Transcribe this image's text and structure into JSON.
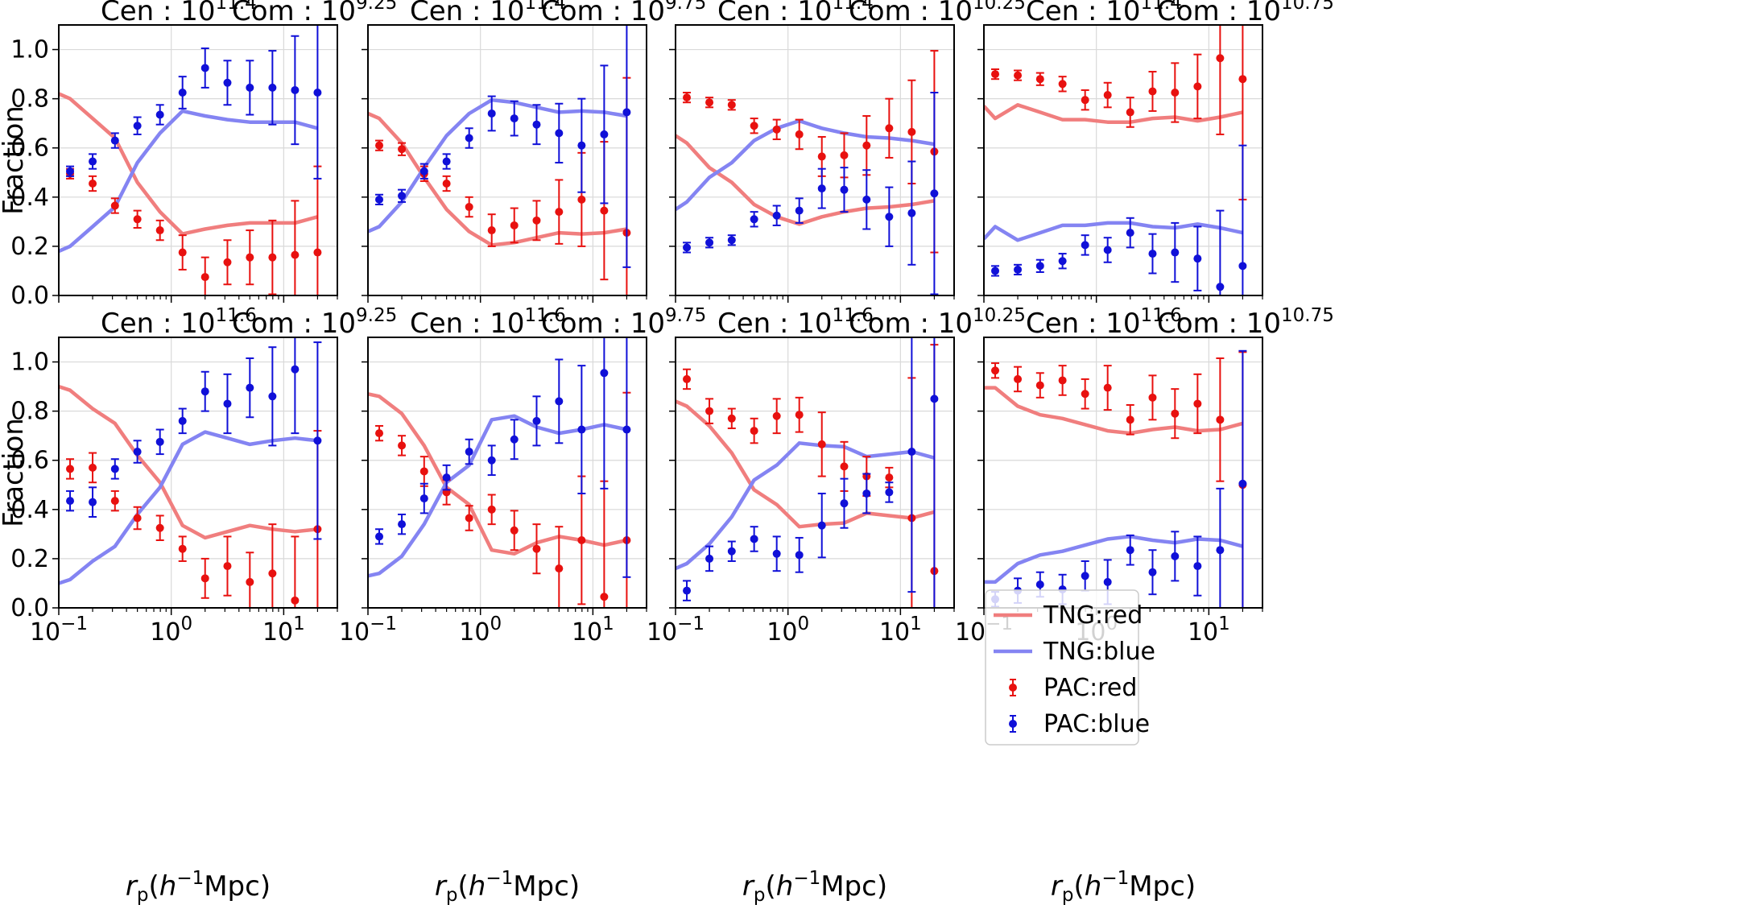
{
  "figure": {
    "ylabel": "Fraction",
    "xlabel_parts": {
      "r": "r",
      "sub": "p",
      "open": "(",
      "h": "h",
      "sup": "−1",
      "rest": "Mpc)"
    },
    "yticks": [
      "0.0",
      "0.2",
      "0.4",
      "0.6",
      "0.8",
      "1.0"
    ],
    "xticks": [
      {
        "base": "10",
        "exp": "−1"
      },
      {
        "base": "10",
        "exp": "0"
      },
      {
        "base": "10",
        "exp": "1"
      }
    ],
    "title_prefix_cen": "Cen : ",
    "title_prefix_com": "Com : ",
    "title_base": "10",
    "colors": {
      "tng_red": "#f07e7e",
      "tng_blue": "#8484f2",
      "pac_red": "#e8110f",
      "pac_blue": "#1010d8",
      "grid": "#d9d9d9"
    }
  },
  "legend": {
    "tng_red": "TNG:red",
    "tng_blue": "TNG:blue",
    "pac_red": "PAC:red",
    "pac_blue": "PAC:blue"
  },
  "chart_data": {
    "type": "line",
    "xscale": "log",
    "xlim": [
      0.1,
      30
    ],
    "ylim": [
      0,
      1.1
    ],
    "legend_location": "center-right of bottom-right panel",
    "x_pac": [
      0.126,
      0.2,
      0.316,
      0.5,
      0.794,
      1.26,
      2.0,
      3.16,
      5.0,
      7.94,
      12.6,
      20.0
    ],
    "x_tng": [
      0.1,
      0.126,
      0.2,
      0.316,
      0.5,
      0.794,
      1.26,
      2.0,
      3.16,
      5.0,
      7.94,
      12.6,
      20.0
    ],
    "panels": [
      {
        "cen_exp": "11.4",
        "com_exp": "9.25",
        "tng_red": [
          0.82,
          0.8,
          0.72,
          0.64,
          0.46,
          0.34,
          0.25,
          0.27,
          0.285,
          0.295,
          0.295,
          0.295,
          0.32
        ],
        "tng_blue": [
          0.18,
          0.2,
          0.28,
          0.36,
          0.54,
          0.66,
          0.75,
          0.73,
          0.715,
          0.705,
          0.705,
          0.705,
          0.68
        ],
        "pac_red": [
          0.495,
          0.455,
          0.365,
          0.31,
          0.265,
          0.175,
          0.075,
          0.135,
          0.155,
          0.155,
          0.165,
          0.175
        ],
        "pac_red_err": [
          0.02,
          0.03,
          0.03,
          0.035,
          0.04,
          0.07,
          0.08,
          0.09,
          0.11,
          0.15,
          0.22,
          0.35
        ],
        "pac_blue": [
          0.505,
          0.545,
          0.63,
          0.69,
          0.735,
          0.825,
          0.925,
          0.865,
          0.845,
          0.845,
          0.835,
          0.825
        ],
        "pac_blue_err": [
          0.02,
          0.03,
          0.03,
          0.035,
          0.04,
          0.065,
          0.08,
          0.09,
          0.11,
          0.15,
          0.22,
          0.35
        ]
      },
      {
        "cen_exp": "11.4",
        "com_exp": "9.75",
        "tng_red": [
          0.74,
          0.72,
          0.62,
          0.48,
          0.35,
          0.26,
          0.205,
          0.215,
          0.235,
          0.255,
          0.25,
          0.255,
          0.27
        ],
        "tng_blue": [
          0.26,
          0.28,
          0.38,
          0.52,
          0.65,
          0.74,
          0.795,
          0.785,
          0.765,
          0.745,
          0.75,
          0.745,
          0.73
        ],
        "pac_red": [
          0.61,
          0.595,
          0.495,
          0.455,
          0.36,
          0.265,
          0.285,
          0.305,
          0.34,
          0.39,
          0.345,
          0.255
        ],
        "pac_red_err": [
          0.02,
          0.025,
          0.03,
          0.03,
          0.04,
          0.065,
          0.07,
          0.08,
          0.13,
          0.19,
          0.28,
          0.63
        ],
        "pac_blue": [
          0.39,
          0.405,
          0.505,
          0.545,
          0.64,
          0.74,
          0.72,
          0.695,
          0.66,
          0.61,
          0.655,
          0.745
        ],
        "pac_blue_err": [
          0.02,
          0.025,
          0.03,
          0.03,
          0.04,
          0.07,
          0.07,
          0.08,
          0.12,
          0.19,
          0.28,
          0.63
        ]
      },
      {
        "cen_exp": "11.4",
        "com_exp": "10.25",
        "tng_red": [
          0.65,
          0.62,
          0.52,
          0.46,
          0.37,
          0.32,
          0.29,
          0.32,
          0.34,
          0.355,
          0.36,
          0.37,
          0.385
        ],
        "tng_blue": [
          0.35,
          0.38,
          0.48,
          0.54,
          0.63,
          0.68,
          0.71,
          0.68,
          0.66,
          0.645,
          0.64,
          0.63,
          0.615
        ],
        "pac_red": [
          0.805,
          0.785,
          0.775,
          0.69,
          0.675,
          0.655,
          0.565,
          0.57,
          0.61,
          0.68,
          0.665,
          0.585
        ],
        "pac_red_err": [
          0.02,
          0.02,
          0.02,
          0.03,
          0.04,
          0.06,
          0.08,
          0.09,
          0.12,
          0.12,
          0.21,
          0.41
        ],
        "pac_blue": [
          0.195,
          0.215,
          0.225,
          0.31,
          0.325,
          0.345,
          0.435,
          0.43,
          0.39,
          0.32,
          0.335,
          0.415
        ],
        "pac_blue_err": [
          0.02,
          0.02,
          0.02,
          0.03,
          0.04,
          0.05,
          0.08,
          0.09,
          0.12,
          0.12,
          0.21,
          0.41
        ]
      },
      {
        "cen_exp": "11.4",
        "com_exp": "10.75",
        "tng_red": [
          0.77,
          0.72,
          0.775,
          0.745,
          0.715,
          0.715,
          0.705,
          0.705,
          0.72,
          0.725,
          0.71,
          0.725,
          0.745
        ],
        "tng_blue": [
          0.23,
          0.28,
          0.225,
          0.255,
          0.285,
          0.285,
          0.295,
          0.295,
          0.28,
          0.275,
          0.29,
          0.275,
          0.255
        ],
        "pac_red": [
          0.9,
          0.895,
          0.88,
          0.86,
          0.795,
          0.815,
          0.745,
          0.83,
          0.825,
          0.85,
          0.965,
          0.88
        ],
        "pac_red_err": [
          0.02,
          0.02,
          0.025,
          0.03,
          0.04,
          0.05,
          0.06,
          0.08,
          0.12,
          0.13,
          0.31,
          0.49
        ],
        "pac_blue": [
          0.1,
          0.105,
          0.12,
          0.14,
          0.205,
          0.185,
          0.255,
          0.17,
          0.175,
          0.15,
          0.035,
          0.12
        ],
        "pac_blue_err": [
          0.02,
          0.02,
          0.025,
          0.03,
          0.04,
          0.05,
          0.06,
          0.08,
          0.12,
          0.13,
          0.31,
          0.49
        ]
      },
      {
        "cen_exp": "11.6",
        "com_exp": "9.25",
        "tng_red": [
          0.9,
          0.885,
          0.81,
          0.75,
          0.62,
          0.51,
          0.335,
          0.285,
          0.31,
          0.335,
          0.32,
          0.31,
          0.32
        ],
        "tng_blue": [
          0.1,
          0.115,
          0.19,
          0.25,
          0.38,
          0.49,
          0.665,
          0.715,
          0.69,
          0.665,
          0.68,
          0.69,
          0.68
        ],
        "pac_red": [
          0.565,
          0.57,
          0.435,
          0.365,
          0.325,
          0.24,
          0.12,
          0.17,
          0.105,
          0.14,
          0.03,
          0.32
        ],
        "pac_red_err": [
          0.04,
          0.06,
          0.04,
          0.045,
          0.05,
          0.05,
          0.08,
          0.12,
          0.12,
          0.2,
          0.26,
          0.4
        ],
        "pac_blue": [
          0.435,
          0.43,
          0.565,
          0.635,
          0.675,
          0.76,
          0.88,
          0.83,
          0.895,
          0.86,
          0.97,
          0.68
        ],
        "pac_blue_err": [
          0.04,
          0.06,
          0.04,
          0.045,
          0.05,
          0.05,
          0.08,
          0.12,
          0.12,
          0.2,
          0.26,
          0.4
        ]
      },
      {
        "cen_exp": "11.6",
        "com_exp": "9.75",
        "tng_red": [
          0.87,
          0.86,
          0.79,
          0.66,
          0.49,
          0.42,
          0.235,
          0.22,
          0.265,
          0.29,
          0.275,
          0.255,
          0.275
        ],
        "tng_blue": [
          0.13,
          0.14,
          0.21,
          0.34,
          0.51,
          0.58,
          0.765,
          0.78,
          0.735,
          0.71,
          0.725,
          0.745,
          0.725
        ],
        "pac_red": [
          0.71,
          0.66,
          0.555,
          0.47,
          0.365,
          0.4,
          0.315,
          0.24,
          0.16,
          0.275,
          0.045,
          0.275
        ],
        "pac_red_err": [
          0.03,
          0.04,
          0.06,
          0.05,
          0.05,
          0.06,
          0.08,
          0.1,
          0.17,
          0.26,
          0.47,
          0.6
        ],
        "pac_blue": [
          0.29,
          0.34,
          0.445,
          0.53,
          0.635,
          0.6,
          0.685,
          0.76,
          0.84,
          0.725,
          0.955,
          0.725
        ],
        "pac_blue_err": [
          0.03,
          0.04,
          0.06,
          0.05,
          0.05,
          0.06,
          0.08,
          0.1,
          0.17,
          0.26,
          0.47,
          0.6
        ]
      },
      {
        "cen_exp": "11.6",
        "com_exp": "10.25",
        "tng_red": [
          0.84,
          0.82,
          0.74,
          0.63,
          0.48,
          0.42,
          0.33,
          0.34,
          0.345,
          0.385,
          0.375,
          0.365,
          0.39
        ],
        "tng_blue": [
          0.16,
          0.18,
          0.26,
          0.37,
          0.52,
          0.58,
          0.67,
          0.66,
          0.655,
          0.615,
          0.625,
          0.635,
          0.61
        ],
        "pac_red": [
          0.93,
          0.8,
          0.77,
          0.72,
          0.78,
          0.785,
          0.665,
          0.575,
          0.535,
          0.53,
          0.365,
          0.15
        ],
        "pac_red_err": [
          0.04,
          0.05,
          0.04,
          0.05,
          0.07,
          0.07,
          0.13,
          0.1,
          0.08,
          0.04,
          0.57,
          0.92
        ],
        "pac_blue": [
          0.07,
          0.2,
          0.23,
          0.28,
          0.22,
          0.215,
          0.335,
          0.425,
          0.465,
          0.47,
          0.635,
          0.85
        ],
        "pac_blue_err": [
          0.04,
          0.05,
          0.04,
          0.05,
          0.07,
          0.07,
          0.13,
          0.1,
          0.08,
          0.04,
          0.57,
          0.92
        ]
      },
      {
        "cen_exp": "11.6",
        "com_exp": "10.75",
        "tng_red": [
          0.895,
          0.895,
          0.82,
          0.785,
          0.77,
          0.745,
          0.72,
          0.71,
          0.725,
          0.735,
          0.72,
          0.725,
          0.75
        ],
        "tng_blue": [
          0.105,
          0.105,
          0.18,
          0.215,
          0.23,
          0.255,
          0.28,
          0.29,
          0.275,
          0.265,
          0.28,
          0.275,
          0.25
        ],
        "pac_red": [
          0.965,
          0.93,
          0.905,
          0.925,
          0.87,
          0.895,
          0.765,
          0.855,
          0.79,
          0.83,
          0.765,
          0.5
        ],
        "pac_red_err": [
          0.03,
          0.05,
          0.05,
          0.06,
          0.06,
          0.09,
          0.06,
          0.09,
          0.1,
          0.12,
          0.25,
          0.54
        ],
        "pac_blue": [
          0.035,
          0.07,
          0.095,
          0.075,
          0.13,
          0.105,
          0.235,
          0.145,
          0.21,
          0.17,
          0.235,
          0.505
        ],
        "pac_blue_err": [
          0.03,
          0.05,
          0.05,
          0.06,
          0.06,
          0.09,
          0.06,
          0.09,
          0.1,
          0.12,
          0.25,
          0.54
        ]
      }
    ]
  }
}
